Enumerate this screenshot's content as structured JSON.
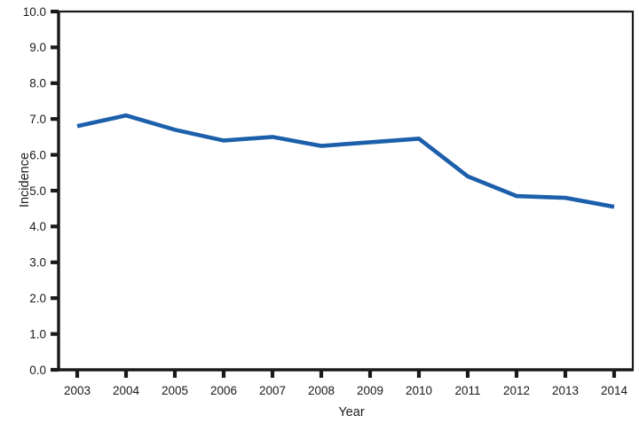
{
  "chart_data": {
    "type": "line",
    "title": "",
    "xlabel": "Year",
    "ylabel": "Incidence",
    "categories": [
      "2003",
      "2004",
      "2005",
      "2006",
      "2007",
      "2008",
      "2009",
      "2010",
      "2011",
      "2012",
      "2013",
      "2014"
    ],
    "series": [
      {
        "name": "Incidence",
        "color": "#1C5FAB",
        "values": [
          6.8,
          7.1,
          6.7,
          6.4,
          6.5,
          6.25,
          6.35,
          6.45,
          5.4,
          4.85,
          4.8,
          4.55
        ]
      }
    ],
    "ylim": [
      0.0,
      10.0
    ],
    "y_tick_labels": [
      "0.0",
      "1.0",
      "2.0",
      "3.0",
      "4.0",
      "5.0",
      "6.0",
      "7.0",
      "8.0",
      "9.0",
      "10.0"
    ],
    "grid": false,
    "legend": false,
    "axis_color": "#1a1a1a"
  }
}
